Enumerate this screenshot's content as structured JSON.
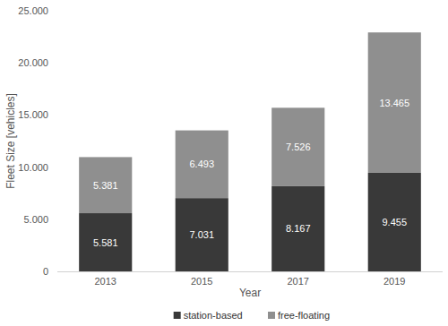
{
  "chart_data": {
    "type": "bar",
    "stacked": true,
    "data_labels": true,
    "grid": false,
    "legend": "bottom",
    "x_label": "Year",
    "y_label": "Fleet Size [vehicles]",
    "categories": [
      "2013",
      "2015",
      "2017",
      "2019"
    ],
    "series": [
      {
        "name": "station-based",
        "color": "#393939",
        "values": [
          5581,
          7031,
          8167,
          9455
        ],
        "value_labels": [
          "5.581",
          "7.031",
          "8.167",
          "9.455"
        ]
      },
      {
        "name": "free-floating",
        "color": "#8f8f8f",
        "values": [
          5381,
          6493,
          7526,
          13465
        ],
        "value_labels": [
          "5.381",
          "6.493",
          "7.526",
          "13.465"
        ]
      }
    ],
    "ylim": [
      0,
      25000
    ],
    "yticks": [
      0,
      {
        "value": 5000,
        "label": "5.000"
      },
      {
        "value": 10000,
        "label": "10.000"
      },
      {
        "value": 15000,
        "label": "15.000"
      },
      {
        "value": 20000,
        "label": "20.000"
      },
      {
        "value": 25000,
        "label": "25.000"
      }
    ]
  }
}
